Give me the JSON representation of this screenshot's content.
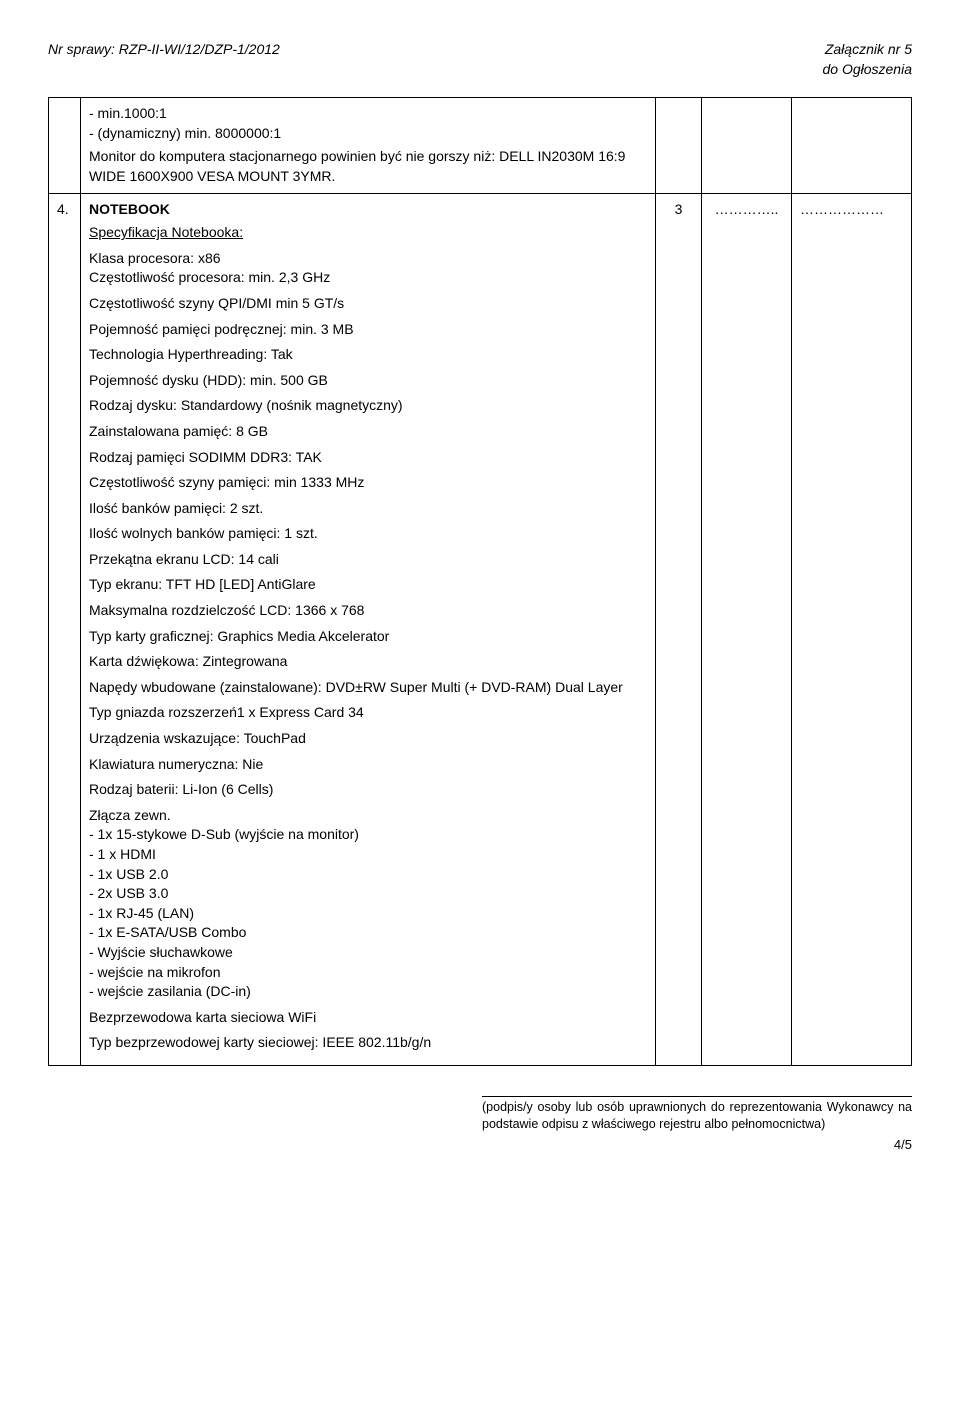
{
  "header": {
    "left": "Nr sprawy: RZP-II-WI/12/DZP-1/2012",
    "right_line1": "Załącznik nr 5",
    "right_line2": "do Ogłoszenia"
  },
  "row1": {
    "lines": [
      "- min.1000:1",
      "- (dynamiczny) min. 8000000:1",
      "Monitor do komputera stacjonarnego powinien być nie gorszy niż: DELL IN2030M 16:9 WIDE 1600X900 VESA MOUNT 3YMR."
    ]
  },
  "row2": {
    "num": "4.",
    "qty": "3",
    "dots": "…………..",
    "blank": "………………",
    "title": "NOTEBOOK",
    "spec_label": "Specyfikacja Notebooka:",
    "specs": [
      "Klasa procesora: x86\nCzęstotliwość procesora: min. 2,3 GHz",
      "Częstotliwość szyny QPI/DMI min 5 GT/s",
      "Pojemność pamięci podręcznej: min. 3 MB",
      "Technologia Hyperthreading: Tak",
      "Pojemność dysku (HDD): min. 500 GB",
      "Rodzaj dysku: Standardowy (nośnik magnetyczny)",
      "Zainstalowana pamięć: 8 GB",
      "Rodzaj pamięci SODIMM DDR3: TAK",
      "Częstotliwość szyny pamięci: min 1333 MHz",
      "Ilość banków pamięci: 2 szt.",
      "Ilość wolnych banków pamięci: 1 szt.",
      "Przekątna ekranu LCD: 14 cali",
      "Typ ekranu: TFT HD [LED] AntiGlare",
      "Maksymalna rozdzielczość LCD: 1366 x 768",
      "Typ karty graficznej: Graphics Media Akcelerator",
      "Karta dźwiękowa: Zintegrowana",
      "Napędy wbudowane (zainstalowane): DVD±RW Super Multi (+ DVD-RAM) Dual Layer",
      "Typ gniazda rozszerzeń1 x Express Card 34",
      "Urządzenia wskazujące: TouchPad",
      "Klawiatura numeryczna: Nie",
      "Rodzaj baterii: Li-Ion (6 Cells)"
    ],
    "connectors_label": "Złącza zewn.",
    "connectors": [
      "- 1x 15-stykowe D-Sub (wyjście na monitor)",
      "- 1 x HDMI",
      "- 1x USB 2.0",
      "- 2x USB 3.0",
      "- 1x RJ-45 (LAN)",
      "- 1x E-SATA/USB Combo",
      "- Wyjście słuchawkowe",
      "- wejście na mikrofon",
      "- wejście zasilania (DC-in)"
    ],
    "tail": [
      "Bezprzewodowa karta sieciowa WiFi",
      "Typ bezprzewodowej karty sieciowej: IEEE 802.11b/g/n"
    ]
  },
  "footer": {
    "text": "(podpis/y osoby lub osób uprawnionych do reprezentowania Wykonawcy na podstawie odpisu z właściwego rejestru albo pełnomocnictwa)",
    "page": "4/5"
  }
}
